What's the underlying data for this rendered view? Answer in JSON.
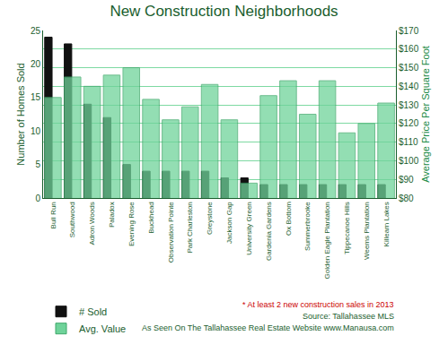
{
  "chart_data": {
    "type": "bar",
    "title": "New Construction Neighborhoods",
    "categories": [
      "Bull Run",
      "Southwood",
      "Adron Woods",
      "Paladox",
      "Evening Rose",
      "Buckhead",
      "Observation Pointe",
      "Park Charleston",
      "Greystone",
      "Jackson Gap",
      "University Green",
      "Gardenia Gardens",
      "Ox Bottom",
      "Summerbrooke",
      "Golden Eagle Plantation",
      "Tippecanoe Hills",
      "Weems Plantation",
      "Killearn Lakes"
    ],
    "series": [
      {
        "name": "Avg. Value",
        "color": "#6fd39a",
        "axis": "y2",
        "values": [
          134,
          145,
          140,
          146,
          150,
          133,
          122,
          129,
          141,
          122,
          88,
          135,
          143,
          125,
          143,
          115,
          120,
          131
        ]
      },
      {
        "name": "# Sold",
        "color": "#111111",
        "values": [
          24,
          23,
          14,
          12,
          5,
          4,
          4,
          4,
          4,
          3,
          3,
          2,
          2,
          2,
          2,
          2,
          2,
          2
        ]
      }
    ],
    "y_label": "Number of Homes Sold",
    "y2_label": "Average Price Per Square Foot",
    "ylim": [
      0,
      25
    ],
    "yticks": [
      0,
      5,
      10,
      15,
      20,
      25
    ],
    "y2lim": [
      80,
      170
    ],
    "y2ticks": [
      {
        "value": 80,
        "label": "$80"
      },
      {
        "value": 90,
        "label": "$90"
      },
      {
        "value": 100,
        "label": "$100"
      },
      {
        "value": 110,
        "label": "$110"
      },
      {
        "value": 120,
        "label": "$120"
      },
      {
        "value": 130,
        "label": "$130"
      },
      {
        "value": 140,
        "label": "$140"
      },
      {
        "value": 150,
        "label": "$150"
      },
      {
        "value": 160,
        "label": "$160"
      },
      {
        "value": 170,
        "label": "$170"
      }
    ],
    "grid": true,
    "legend": "bottom left",
    "annotations": [
      "* At least 2 new construction sales in 2013",
      "Source: Tallahassee MLS",
      "As Seen On The Tallahassee Real Estate Website www.Manausa.com"
    ]
  }
}
